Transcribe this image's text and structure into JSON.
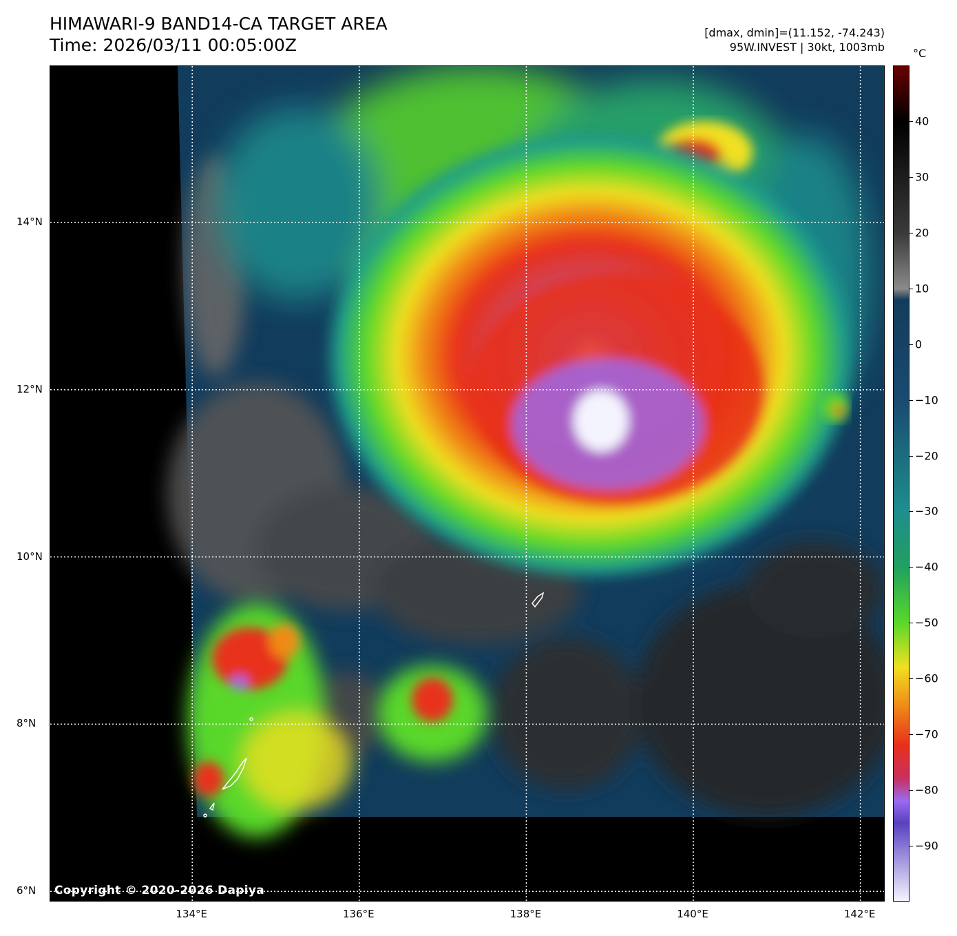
{
  "header": {
    "title": "HIMAWARI-9 BAND14-CA TARGET AREA",
    "time": "Time: 2026/03/11 00:05:00Z",
    "dmax_dmin": "[dmax, dmin]=(11.152, -74.243)",
    "storm_info": "95W.INVEST | 30kt, 1003mb"
  },
  "map": {
    "lat_labels": [
      {
        "label": "14°N",
        "lat": 14
      },
      {
        "label": "12°N",
        "lat": 12
      },
      {
        "label": "10°N",
        "lat": 10
      },
      {
        "label": "8°N",
        "lat": 8
      },
      {
        "label": "6°N",
        "lat": 6
      }
    ],
    "lon_labels": [
      {
        "label": "134°E",
        "lon": 134
      },
      {
        "label": "136°E",
        "lon": 136
      },
      {
        "label": "138°E",
        "lon": 138
      },
      {
        "label": "140°E",
        "lon": 140
      },
      {
        "label": "142°E",
        "lon": 142
      }
    ],
    "lon_range": [
      132.3,
      142.3
    ],
    "lat_range": [
      5.87,
      15.87
    ],
    "storm_center": {
      "lon": 138.9,
      "lat": 11.6
    },
    "copyright": "Copyright © 2020-2026 Dapiya"
  },
  "colorbar": {
    "unit": "°C",
    "range": [
      -100,
      50
    ],
    "ticks": [
      40,
      30,
      20,
      10,
      0,
      -10,
      -20,
      -30,
      -40,
      -50,
      -60,
      -70,
      -80,
      -90
    ],
    "tick_labels": [
      "40",
      "30",
      "20",
      "10",
      "0",
      "−10",
      "−20",
      "−30",
      "−40",
      "−50",
      "−60",
      "−70",
      "−80",
      "−90"
    ],
    "colors": {
      "cold_white": "#f4f4ff",
      "violet": "#9b6bf0",
      "red": "#e8301a",
      "orange": "#f08a18",
      "yellow": "#f0e020",
      "green": "#5ad82a",
      "teal": "#1e8e8e",
      "navy": "#123c5c",
      "gray": "#8a8a8a",
      "black": "#000000",
      "darkred": "#6a0000"
    }
  }
}
